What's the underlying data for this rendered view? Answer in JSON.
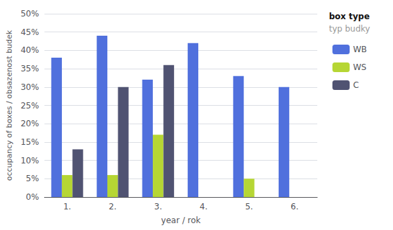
{
  "chart_data": {
    "type": "bar",
    "categories": [
      "1.",
      "2.",
      "3.",
      "4.",
      "5.",
      "6."
    ],
    "series": [
      {
        "name": "WB",
        "values": [
          38,
          44,
          32,
          42,
          33,
          30
        ]
      },
      {
        "name": "WS",
        "values": [
          6,
          6,
          17,
          0,
          5,
          0
        ]
      },
      {
        "name": "C",
        "values": [
          13,
          30,
          36,
          0,
          0,
          0
        ]
      }
    ],
    "ylabel": "occupancy of boxes / obsazenost budek",
    "xlabel": "year / rok",
    "annotations": [
      "box type",
      "typ budky"
    ],
    "ylim": [
      0,
      50
    ],
    "yticks": [
      {
        "value": 0,
        "label": "0%"
      },
      {
        "value": 5,
        "label": "5%"
      },
      {
        "value": 10,
        "label": "10%"
      },
      {
        "value": 15,
        "label": "15%"
      },
      {
        "value": 20,
        "label": "20%"
      },
      {
        "value": 25,
        "label": "25%"
      },
      {
        "value": 30,
        "label": "30%"
      },
      {
        "value": 35,
        "label": "35%"
      },
      {
        "value": 40,
        "label": "40%"
      },
      {
        "value": 45,
        "label": "45%"
      },
      {
        "value": 50,
        "label": "50%"
      }
    ],
    "grid": true,
    "legend": "upper right"
  }
}
